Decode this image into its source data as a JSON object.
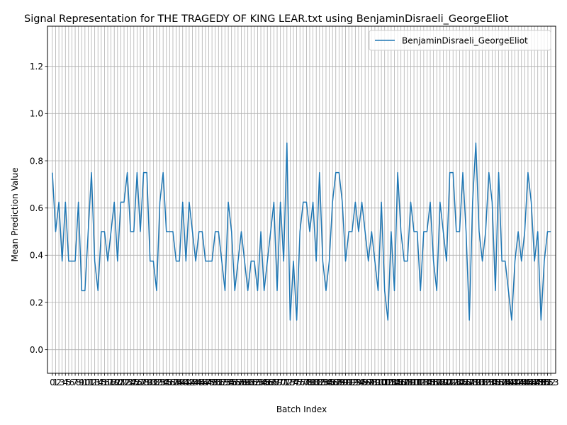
{
  "chart_data": {
    "type": "line",
    "title": "Signal Representation for THE TRAGEDY OF KING LEAR.txt using BenjaminDisraeli_GeorgeEliot",
    "xlabel": "Batch Index",
    "ylabel": "Mean Prediction Value",
    "ylim": [
      -0.1,
      1.37
    ],
    "xlim": [
      -1.5,
      154.5
    ],
    "grid": true,
    "legend_position": "top-right",
    "y_ticks": [
      "0.0",
      "0.2",
      "0.4",
      "0.6",
      "0.8",
      "1.0",
      "1.2"
    ],
    "y_tick_values": [
      0.0,
      0.2,
      0.4,
      0.6,
      0.8,
      1.0,
      1.2
    ],
    "x_tick_last_label": "153",
    "series": [
      {
        "name": "BenjaminDisraeli_GeorgeEliot",
        "color": "#1f77b4",
        "values": [
          0.75,
          0.5,
          0.625,
          0.375,
          0.625,
          0.375,
          0.375,
          0.375,
          0.625,
          0.25,
          0.25,
          0.5,
          0.75,
          0.375,
          0.25,
          0.5,
          0.5,
          0.375,
          0.5,
          0.625,
          0.375,
          0.625,
          0.625,
          0.75,
          0.5,
          0.5,
          0.75,
          0.5,
          0.75,
          0.75,
          0.375,
          0.375,
          0.25,
          0.625,
          0.75,
          0.5,
          0.5,
          0.5,
          0.375,
          0.375,
          0.625,
          0.375,
          0.625,
          0.5,
          0.375,
          0.5,
          0.5,
          0.375,
          0.375,
          0.375,
          0.5,
          0.5,
          0.375,
          0.25,
          0.625,
          0.5,
          0.25,
          0.375,
          0.5,
          0.375,
          0.25,
          0.375,
          0.375,
          0.25,
          0.5,
          0.25,
          0.375,
          0.5,
          0.625,
          0.25,
          0.625,
          0.375,
          0.875,
          0.125,
          0.375,
          0.125,
          0.5,
          0.625,
          0.625,
          0.5,
          0.625,
          0.375,
          0.75,
          0.375,
          0.25,
          0.375,
          0.625,
          0.75,
          0.75,
          0.625,
          0.375,
          0.5,
          0.5,
          0.625,
          0.5,
          0.625,
          0.5,
          0.375,
          0.5,
          0.375,
          0.25,
          0.625,
          0.25,
          0.125,
          0.5,
          0.25,
          0.75,
          0.5,
          0.375,
          0.375,
          0.625,
          0.5,
          0.5,
          0.25,
          0.5,
          0.5,
          0.625,
          0.375,
          0.25,
          0.625,
          0.5,
          0.375,
          0.75,
          0.75,
          0.5,
          0.5,
          0.75,
          0.5,
          0.125,
          0.625,
          0.875,
          0.5,
          0.375,
          0.5,
          0.75,
          0.625,
          0.25,
          0.75,
          0.375,
          0.375,
          0.25,
          0.125,
          0.375,
          0.5,
          0.375,
          0.5,
          0.75,
          0.625,
          0.375,
          0.5,
          0.125,
          0.375,
          0.5,
          0.5
        ]
      }
    ]
  }
}
